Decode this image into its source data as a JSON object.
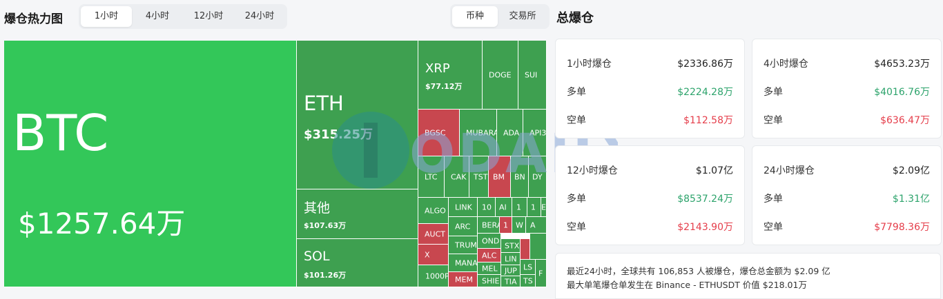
{
  "header": {
    "title": "爆仓热力图",
    "time_tabs": [
      "1小时",
      "4小时",
      "12小时",
      "24小时"
    ],
    "type_tabs": [
      "币种",
      "交易所"
    ],
    "right_title": "总爆仓"
  },
  "treemap": {
    "btc": {
      "sym": "BTC",
      "val": "$1257.64万"
    },
    "eth": {
      "sym": "ETH",
      "val": "$315.25万"
    },
    "other": {
      "sym": "其他",
      "val": "$107.63万"
    },
    "sol": {
      "sym": "SOL",
      "val": "$101.26万"
    },
    "xrp": {
      "sym": "XRP",
      "val": "$77.12万"
    },
    "doge": "DOGE",
    "sui": "SUI",
    "bgsc": "BGSC",
    "mubara": "MUBARA",
    "ada": "ADA",
    "api3": "API3",
    "ltc": "LTC",
    "cak": "CAK",
    "tst": "TST",
    "bm": "BM",
    "bn": "BN",
    "dy": "DY",
    "algo": "ALGO",
    "link": "LINK",
    "c10a": "10",
    "ai": "AI",
    "c1": "1",
    "e": "E",
    "auct": "AUCT",
    "arc": "ARC",
    "bera": "BERA",
    "c1b": "1",
    "w": "W",
    "a": "A",
    "trum": "TRUM",
    "ond": "OND",
    "stx": "STX",
    "x": "X",
    "mana": "MANA",
    "alc": "ALC",
    "lin": "LIN",
    "c1000p": "1000P",
    "mel": "MEL",
    "jup": "JUP",
    "tia": "TIA",
    "shie": "SHIE",
    "mem": "MEM",
    "ls": "LS",
    "ts": "TS",
    "f": "F"
  },
  "watermark": "ODAILY",
  "cards": [
    {
      "title": "1小时爆仓",
      "total": "$2336.86万",
      "long_label": "多单",
      "long": "$2224.28万",
      "short_label": "空单",
      "short": "$112.58万"
    },
    {
      "title": "4小时爆仓",
      "total": "$4653.23万",
      "long_label": "多单",
      "long": "$4016.76万",
      "short_label": "空单",
      "short": "$636.47万"
    },
    {
      "title": "12小时爆仓",
      "total": "$1.07亿",
      "long_label": "多单",
      "long": "$8537.24万",
      "short_label": "空单",
      "short": "$2143.90万"
    },
    {
      "title": "24小时爆仓",
      "total": "$2.09亿",
      "long_label": "多单",
      "long": "$1.31亿",
      "short_label": "空单",
      "short": "$7798.36万"
    }
  ],
  "summary": {
    "line1": "最近24小时，全球共有 106,853 人被爆仓，爆仓总金额为 $2.09 亿",
    "line2": "最大单笔爆仓单发生在 Binance - ETHUSDT 价值 $218.01万"
  },
  "colors": {
    "long": "#2ca36b",
    "short": "#e53d4a",
    "cell_green": "#3ea050",
    "cell_red": "#c8474f",
    "cell_btc": "#33c759"
  }
}
